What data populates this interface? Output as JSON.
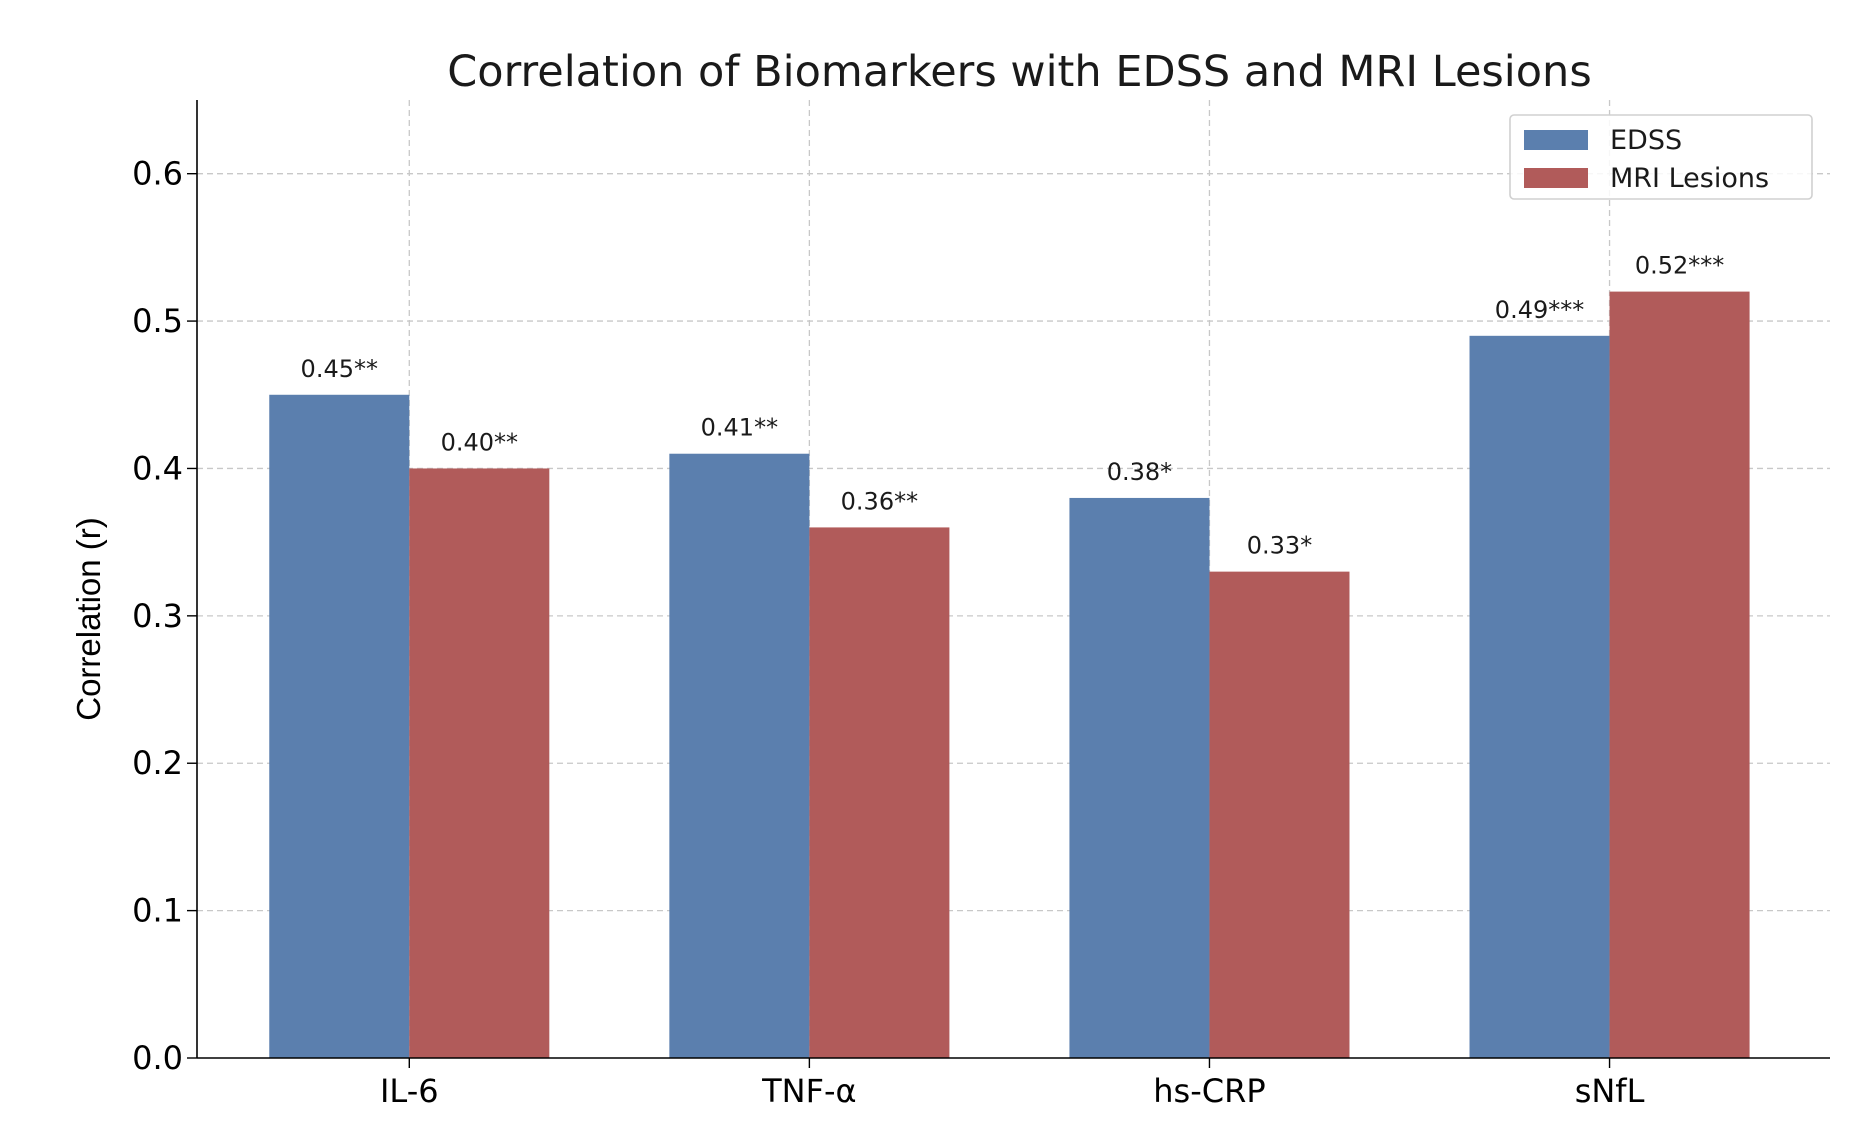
{
  "chart_data": {
    "type": "bar",
    "title": "Correlation of Biomarkers with EDSS and MRI Lesions",
    "xlabel": "",
    "ylabel": "Correlation (r)",
    "categories": [
      "IL-6",
      "TNF-α",
      "hs-CRP",
      "sNfL"
    ],
    "series": [
      {
        "name": "EDSS",
        "color": "#5b7fae",
        "values": [
          0.45,
          0.41,
          0.38,
          0.49
        ],
        "labels": [
          "0.45**",
          "0.41**",
          "0.38*",
          "0.49***"
        ]
      },
      {
        "name": "MRI Lesions",
        "color": "#b15b5a",
        "values": [
          0.4,
          0.36,
          0.33,
          0.52
        ],
        "labels": [
          "0.40**",
          "0.36**",
          "0.33*",
          "0.52***"
        ]
      }
    ],
    "ylim": [
      0,
      0.65
    ],
    "yticks": [
      "0.0",
      "0.1",
      "0.2",
      "0.3",
      "0.4",
      "0.5",
      "0.6"
    ],
    "grid": true,
    "legend_position": "top-right"
  }
}
